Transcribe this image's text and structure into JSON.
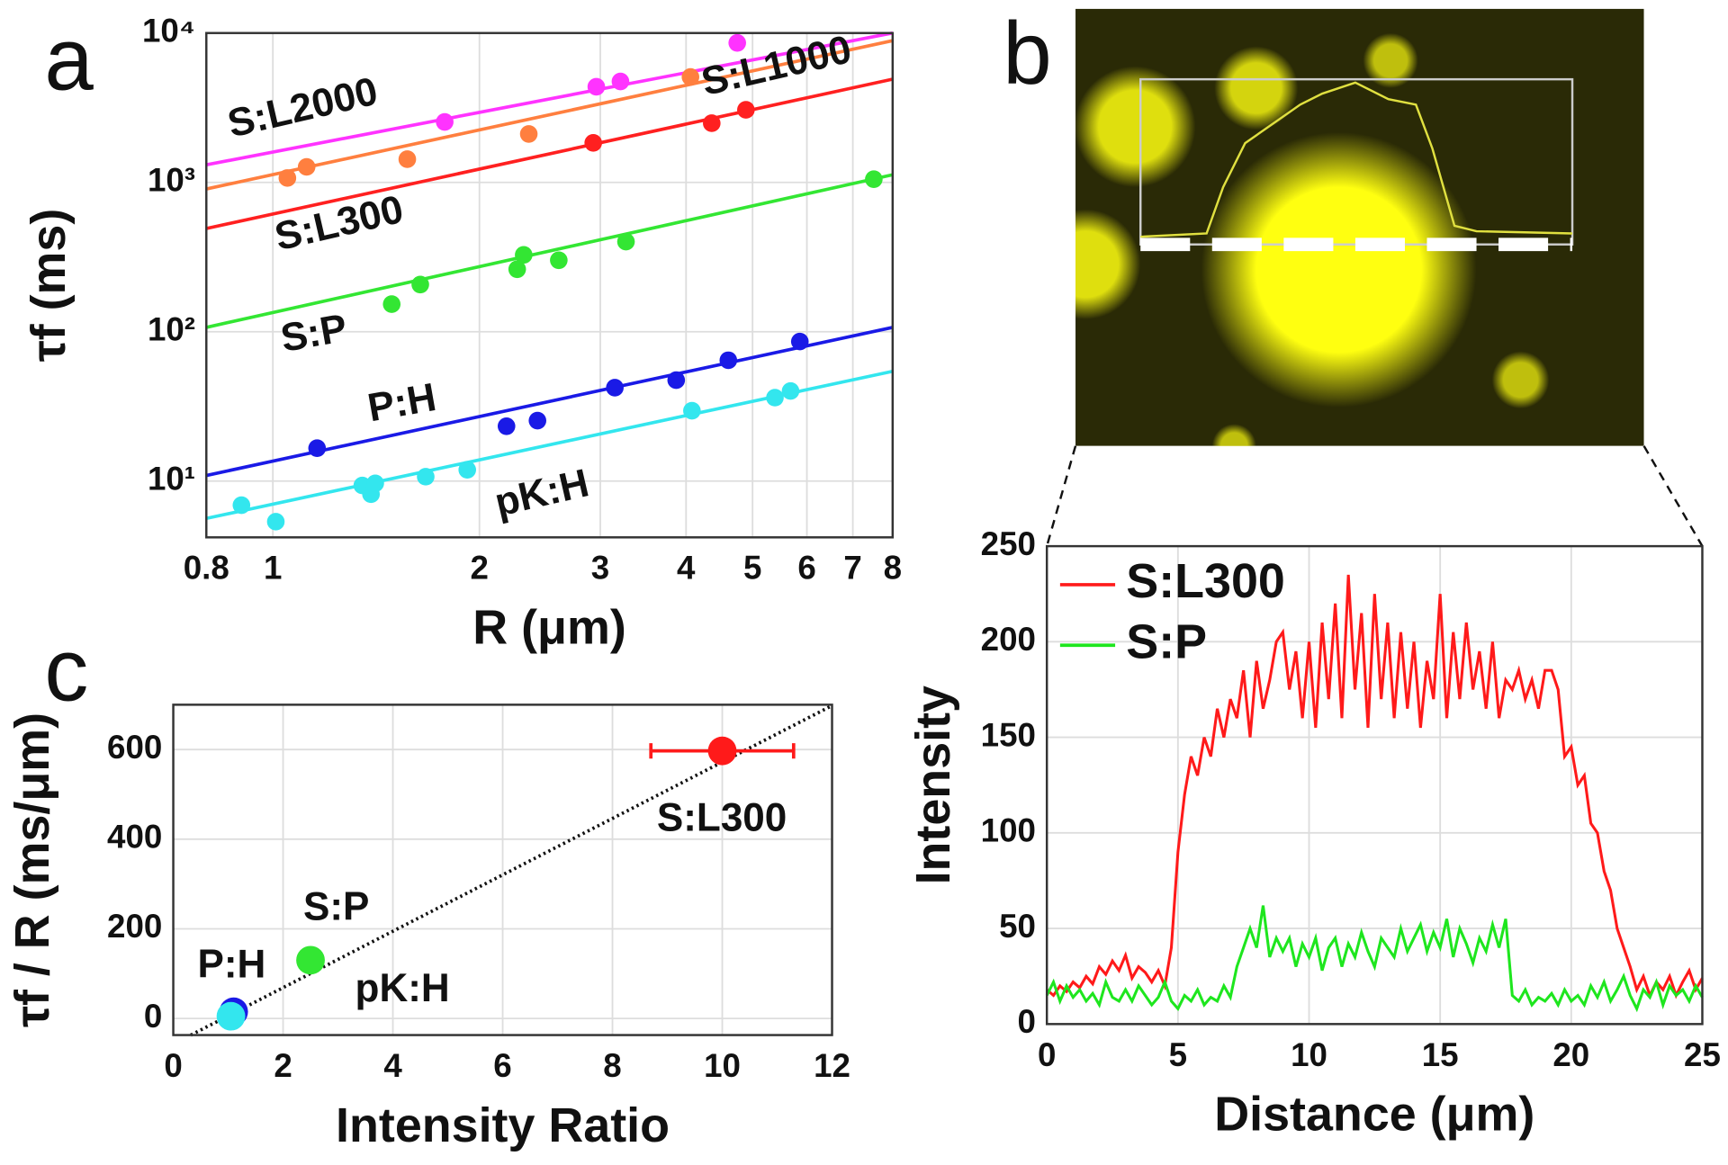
{
  "chart_data": [
    {
      "type": "scatter",
      "panel_label": "a",
      "x_label": "R (μm)",
      "y_label": "τf (ms)",
      "xlog": true,
      "ylog": true,
      "grid": true,
      "xlim": [
        0.8,
        8
      ],
      "ylim": [
        4.2,
        10000
      ],
      "xticks": [
        0.8,
        1,
        2,
        3,
        4,
        5,
        6,
        7,
        8
      ],
      "yticks": [
        {
          "value": 10,
          "label": "10¹"
        },
        {
          "value": 100,
          "label": "10²"
        },
        {
          "value": 1000,
          "label": "10³"
        },
        {
          "value": 10000,
          "label": "10⁴"
        }
      ],
      "series": [
        {
          "name": "S:L2000",
          "color": "#ff33ff",
          "x": [
            1.78,
            2.96,
            3.21,
            4.75
          ],
          "values": [
            2540,
            4370,
            4740,
            8590
          ],
          "fit_values": [
            1310,
            10000
          ]
        },
        {
          "name": "S:L1000",
          "color": "#ff7f3f",
          "x": [
            1.05,
            1.12,
            1.57,
            2.36,
            4.06
          ],
          "values": [
            1070,
            1270,
            1430,
            2110,
            5080
          ],
          "fit_values": [
            904,
            8890
          ]
        },
        {
          "name": "S:L300",
          "color": "#ff2020",
          "x": [
            2.93,
            4.36,
            4.89
          ],
          "values": [
            1840,
            2490,
            3060
          ],
          "fit_values": [
            491,
            4910
          ]
        },
        {
          "name": "S:P",
          "color": "#33e633",
          "x": [
            1.49,
            1.64,
            2.27,
            2.32,
            2.61,
            3.27,
            7.51
          ],
          "values": [
            153,
            207,
            262,
            327,
            301,
            401,
            1050
          ],
          "fit_values": [
            107,
            1125
          ]
        },
        {
          "name": "P:H",
          "color": "#1a1ae6",
          "x": [
            1.16,
            2.19,
            2.43,
            3.15,
            3.87,
            4.61,
            5.86
          ],
          "values": [
            16.6,
            23.3,
            25.4,
            42.2,
            47.4,
            64.4,
            86
          ],
          "fit_values": [
            10.9,
            107
          ]
        },
        {
          "name": "pK:H",
          "color": "#33e6ee",
          "x": [
            0.9,
            1.01,
            1.35,
            1.39,
            1.41,
            1.67,
            1.92,
            4.08,
            5.39,
            5.68
          ],
          "values": [
            6.9,
            5.35,
            9.35,
            8.17,
            9.66,
            10.7,
            11.9,
            29.6,
            36.2,
            40.1
          ],
          "fit_values": [
            5.62,
            54.3
          ]
        }
      ]
    },
    {
      "type": "line",
      "panel_label": "b",
      "x_label": "Distance (μm)",
      "y_label": "Intensity",
      "grid": true,
      "legend": "upper-left",
      "xlim": [
        0,
        25
      ],
      "ylim": [
        0,
        250
      ],
      "xticks": [
        0,
        5,
        10,
        15,
        20,
        25
      ],
      "yticks": [
        0,
        50,
        100,
        150,
        200,
        250
      ],
      "x": [
        0,
        0.25,
        0.5,
        0.75,
        1,
        1.25,
        1.5,
        1.75,
        2,
        2.25,
        2.5,
        2.75,
        3,
        3.25,
        3.5,
        3.75,
        4,
        4.25,
        4.5,
        4.75,
        5,
        5.25,
        5.5,
        5.75,
        6,
        6.25,
        6.5,
        6.75,
        7,
        7.25,
        7.5,
        7.75,
        8,
        8.25,
        8.5,
        8.75,
        9,
        9.25,
        9.5,
        9.75,
        10,
        10.25,
        10.5,
        10.75,
        11,
        11.25,
        11.5,
        11.75,
        12,
        12.25,
        12.5,
        12.75,
        13,
        13.25,
        13.5,
        13.75,
        14,
        14.25,
        14.5,
        14.75,
        15,
        15.25,
        15.5,
        15.75,
        16,
        16.25,
        16.5,
        16.75,
        17,
        17.25,
        17.5,
        17.75,
        18,
        18.25,
        18.5,
        18.75,
        19,
        19.25,
        19.5,
        19.75,
        20,
        20.25,
        20.5,
        20.75,
        21,
        21.25,
        21.5,
        21.75,
        22,
        22.25,
        22.5,
        22.75,
        23,
        23.25,
        23.5,
        23.75,
        24,
        24.25,
        24.5,
        24.75,
        25
      ],
      "series": [
        {
          "name": "S:L300",
          "color": "#ff1a1a",
          "values": [
            18,
            15,
            20,
            17,
            22,
            19,
            25,
            21,
            30,
            26,
            33,
            28,
            36,
            24,
            30,
            27,
            22,
            28,
            20,
            40,
            90,
            120,
            140,
            130,
            150,
            140,
            165,
            150,
            170,
            160,
            185,
            150,
            190,
            165,
            180,
            200,
            205,
            175,
            195,
            160,
            200,
            155,
            210,
            170,
            220,
            160,
            235,
            175,
            215,
            155,
            225,
            170,
            210,
            160,
            205,
            165,
            200,
            155,
            190,
            170,
            225,
            160,
            205,
            170,
            210,
            175,
            195,
            165,
            200,
            160,
            180,
            175,
            185,
            170,
            180,
            165,
            185,
            185,
            175,
            140,
            145,
            125,
            130,
            105,
            100,
            80,
            70,
            50,
            40,
            30,
            18,
            25,
            15,
            22,
            18,
            25,
            15,
            22,
            28,
            18,
            24
          ]
        },
        {
          "name": "S:P",
          "color": "#1ee61e",
          "values": [
            15,
            22,
            12,
            20,
            14,
            18,
            12,
            16,
            10,
            22,
            14,
            12,
            18,
            12,
            20,
            15,
            10,
            14,
            22,
            12,
            8,
            15,
            12,
            18,
            10,
            14,
            12,
            20,
            14,
            30,
            40,
            50,
            40,
            62,
            35,
            45,
            38,
            45,
            30,
            42,
            35,
            45,
            28,
            40,
            45,
            30,
            42,
            35,
            48,
            38,
            30,
            45,
            40,
            35,
            50,
            38,
            45,
            52,
            38,
            48,
            40,
            55,
            35,
            50,
            42,
            32,
            45,
            38,
            52,
            40,
            55,
            15,
            12,
            18,
            10,
            14,
            12,
            16,
            10,
            18,
            12,
            15,
            10,
            20,
            14,
            22,
            12,
            18,
            25,
            15,
            8,
            18,
            14,
            22,
            10,
            20,
            15,
            18,
            12,
            20,
            14
          ]
        }
      ]
    },
    {
      "type": "scatter",
      "panel_label": "c",
      "x_label": "Intensity Ratio",
      "y_label": "τf / R (ms/μm)",
      "grid": true,
      "xlim": [
        0,
        12
      ],
      "ylim": [
        -37,
        700
      ],
      "xticks": [
        0,
        2,
        4,
        6,
        8,
        10,
        12
      ],
      "yticks": [
        0,
        200,
        400,
        600
      ],
      "fit_line": {
        "x": [
          0.32,
          12
        ],
        "values": [
          -37,
          698
        ]
      },
      "series": [
        {
          "name": "S:L300",
          "color": "#ff1a1a",
          "x": [
            10
          ],
          "values": [
            597
          ],
          "x_error": [
            1.3
          ]
        },
        {
          "name": "S:P",
          "color": "#33e633",
          "x": [
            2.5
          ],
          "values": [
            130
          ]
        },
        {
          "name": "P:H",
          "color": "#1a1ae6",
          "x": [
            1.1
          ],
          "values": [
            15
          ]
        },
        {
          "name": "pK:H",
          "color": "#33e6ee",
          "x": [
            1.05
          ],
          "values": [
            5
          ]
        }
      ]
    }
  ]
}
